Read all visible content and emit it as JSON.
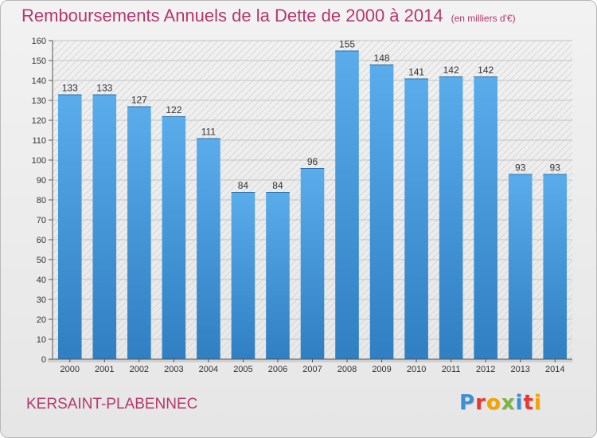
{
  "header": {
    "title": "Remboursements Annuels de la Dette de 2000 à 2014",
    "unit": "(en milliers d'€)"
  },
  "footer": {
    "city": "KERSAINT-PLABENNEC",
    "logo_letters": [
      {
        "char": "P",
        "color": "#3b8fd6"
      },
      {
        "char": "r",
        "color": "#e53935"
      },
      {
        "char": "o",
        "color": "#f4a300"
      },
      {
        "char": "x",
        "color": "#7cb342"
      },
      {
        "char": "i",
        "color": "#3b8fd6"
      },
      {
        "char": "t",
        "color": "#e53935"
      },
      {
        "char": "i",
        "color": "#f4a300"
      }
    ]
  },
  "chart_data": {
    "type": "bar",
    "title": "Remboursements Annuels de la Dette de 2000 à 2014",
    "xlabel": "",
    "ylabel": "",
    "categories": [
      "2000",
      "2001",
      "2002",
      "2003",
      "2004",
      "2005",
      "2006",
      "2007",
      "2008",
      "2009",
      "2010",
      "2011",
      "2012",
      "2013",
      "2014"
    ],
    "values": [
      133,
      133,
      127,
      122,
      111,
      84,
      84,
      96,
      155,
      148,
      141,
      142,
      142,
      93,
      93
    ],
    "ylim": [
      0,
      160
    ],
    "ytick_step": 10,
    "grid": true,
    "legend": "none",
    "colors": {
      "bar_top": "#5aaceb",
      "bar_bottom": "#2f7fc2",
      "title": "#b5386a",
      "grid": "#c4c4c4"
    }
  }
}
